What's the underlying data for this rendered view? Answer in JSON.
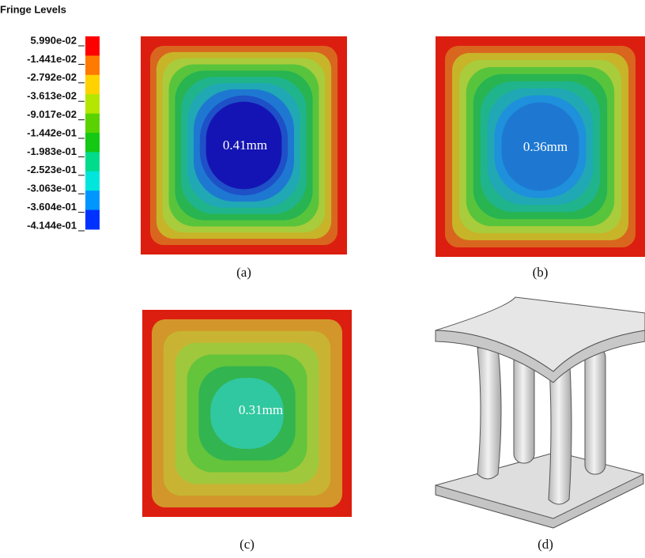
{
  "legend": {
    "title": "Fringe Levels",
    "labels": [
      "5.990e-02",
      "-1.441e-02",
      "-2.792e-02",
      "-3.613e-02",
      "-9.017e-02",
      "-1.442e-01",
      "-1.983e-01",
      "-2.523e-01",
      "-3.063e-01",
      "-3.604e-01",
      "-4.144e-01"
    ],
    "colors": [
      "#ff0000",
      "#ff7a00",
      "#ffd200",
      "#b4e600",
      "#5ad200",
      "#14c814",
      "#00dc8c",
      "#00e6dc",
      "#0096ff",
      "#0032ff"
    ]
  },
  "panels": [
    {
      "value_label": "0.41mm",
      "caption": "(a)"
    },
    {
      "value_label": "0.36mm",
      "caption": "(b)"
    },
    {
      "value_label": "0.31mm",
      "caption": "(c)"
    },
    {
      "caption": "(d)"
    }
  ]
}
